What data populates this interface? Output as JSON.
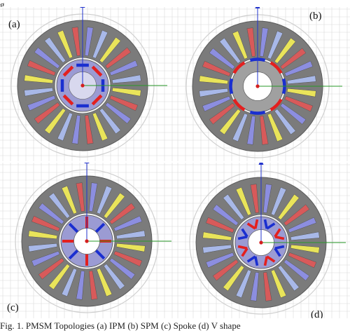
{
  "figure": {
    "caption": "Fig. 1.   PMSM Topologies (a) IPM (b) SPM (c) Spoke (d) V shape",
    "cropped_top_text": "g"
  },
  "panels": [
    {
      "id": "a",
      "tag": "(a)",
      "rotor": "IPM"
    },
    {
      "id": "b",
      "tag": "(b)",
      "rotor": "SPM"
    },
    {
      "id": "c",
      "tag": "(c)",
      "rotor": "Spoke"
    },
    {
      "id": "d",
      "tag": "(d)",
      "rotor": "V shape"
    }
  ],
  "stator": {
    "slots": 24,
    "winding_colors": [
      "#e9e45a",
      "#d85a5a",
      "#8c8ee0",
      "#a8b8e8"
    ]
  },
  "colors": {
    "grid": "#dadada",
    "stator": "#7b7b7b",
    "stator_edge": "#5a5a5a",
    "airgap_circle": "#cfcfcf",
    "rotor_ipm": "#9b9bd3",
    "rotor_spm": "#a0a0a0",
    "magnet_red": "#e3201f",
    "magnet_blue": "#1a2fd0",
    "axis_blue": "#2233cc",
    "axis_green": "#2a9a2a",
    "axis_red": "#d41f1f"
  }
}
